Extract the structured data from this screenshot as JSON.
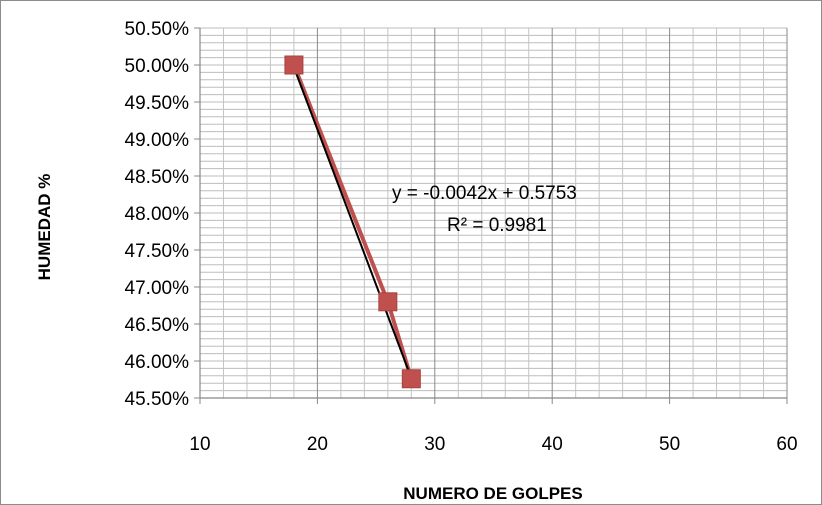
{
  "chart_data": {
    "type": "scatter",
    "title": "",
    "xlabel": "NUMERO DE GOLPES",
    "ylabel": "HUMEDAD %",
    "xlim": [
      10,
      60
    ],
    "ylim": [
      0.455,
      0.505
    ],
    "x_ticks": [
      "10",
      "20",
      "30",
      "40",
      "50",
      "60"
    ],
    "y_ticks": [
      "45.50%",
      "46.00%",
      "46.50%",
      "47.00%",
      "47.50%",
      "48.00%",
      "48.50%",
      "49.00%",
      "49.50%",
      "50.00%",
      "50.50%"
    ],
    "grid": true,
    "legend": "none",
    "series": [
      {
        "color": "#c0504d",
        "marker": "square",
        "connected": true,
        "points": [
          {
            "x": 18,
            "y": 0.5
          },
          {
            "x": 26,
            "y": 0.468
          },
          {
            "x": 28,
            "y": 0.4576
          }
        ]
      }
    ],
    "trendline": {
      "type": "linear",
      "slope": -0.0042,
      "intercept": 0.5753,
      "color": "#000000",
      "x_range": [
        18,
        28
      ]
    },
    "annotations": {
      "equation": "y = -0.0042x + 0.5753",
      "r_squared": "R² = 0.9981"
    }
  }
}
